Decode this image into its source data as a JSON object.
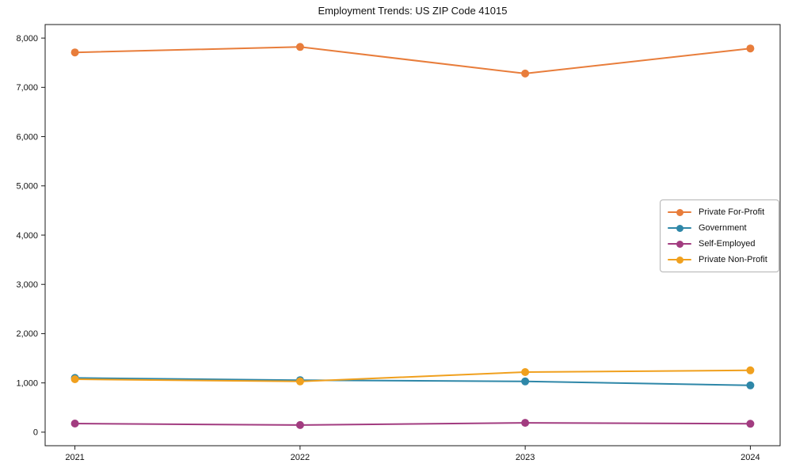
{
  "figure": {
    "title": "Employment Trends: US ZIP Code 41015"
  },
  "chart_data": {
    "type": "line",
    "title": "Employment Trends: US ZIP Code 41015",
    "categories": [
      "2021",
      "2022",
      "2023",
      "2024"
    ],
    "series": [
      {
        "name": "Private For-Profit",
        "color": "#e87d3b",
        "values": [
          7710,
          7820,
          7280,
          7790
        ]
      },
      {
        "name": "Government",
        "color": "#2e87a8",
        "values": [
          1100,
          1055,
          1030,
          950
        ]
      },
      {
        "name": "Self-Employed",
        "color": "#a23c80",
        "values": [
          175,
          145,
          190,
          170
        ]
      },
      {
        "name": "Private Non-Profit",
        "color": "#f0a01e",
        "values": [
          1075,
          1030,
          1220,
          1255
        ]
      }
    ],
    "xlabel": "",
    "ylabel": "",
    "ylim": [
      -275,
      8275
    ],
    "yticks": {
      "values": [
        0,
        1000,
        2000,
        3000,
        4000,
        5000,
        6000,
        7000,
        8000
      ],
      "labels": [
        "0",
        "1,000",
        "2,000",
        "3,000",
        "4,000",
        "5,000",
        "6,000",
        "7,000",
        "8,000"
      ]
    },
    "grid": false,
    "legend_position": "center-right",
    "axis_color": "#1a1a1a",
    "legend_border_color": "#b3b3b3",
    "background_color": "#ffffff"
  }
}
